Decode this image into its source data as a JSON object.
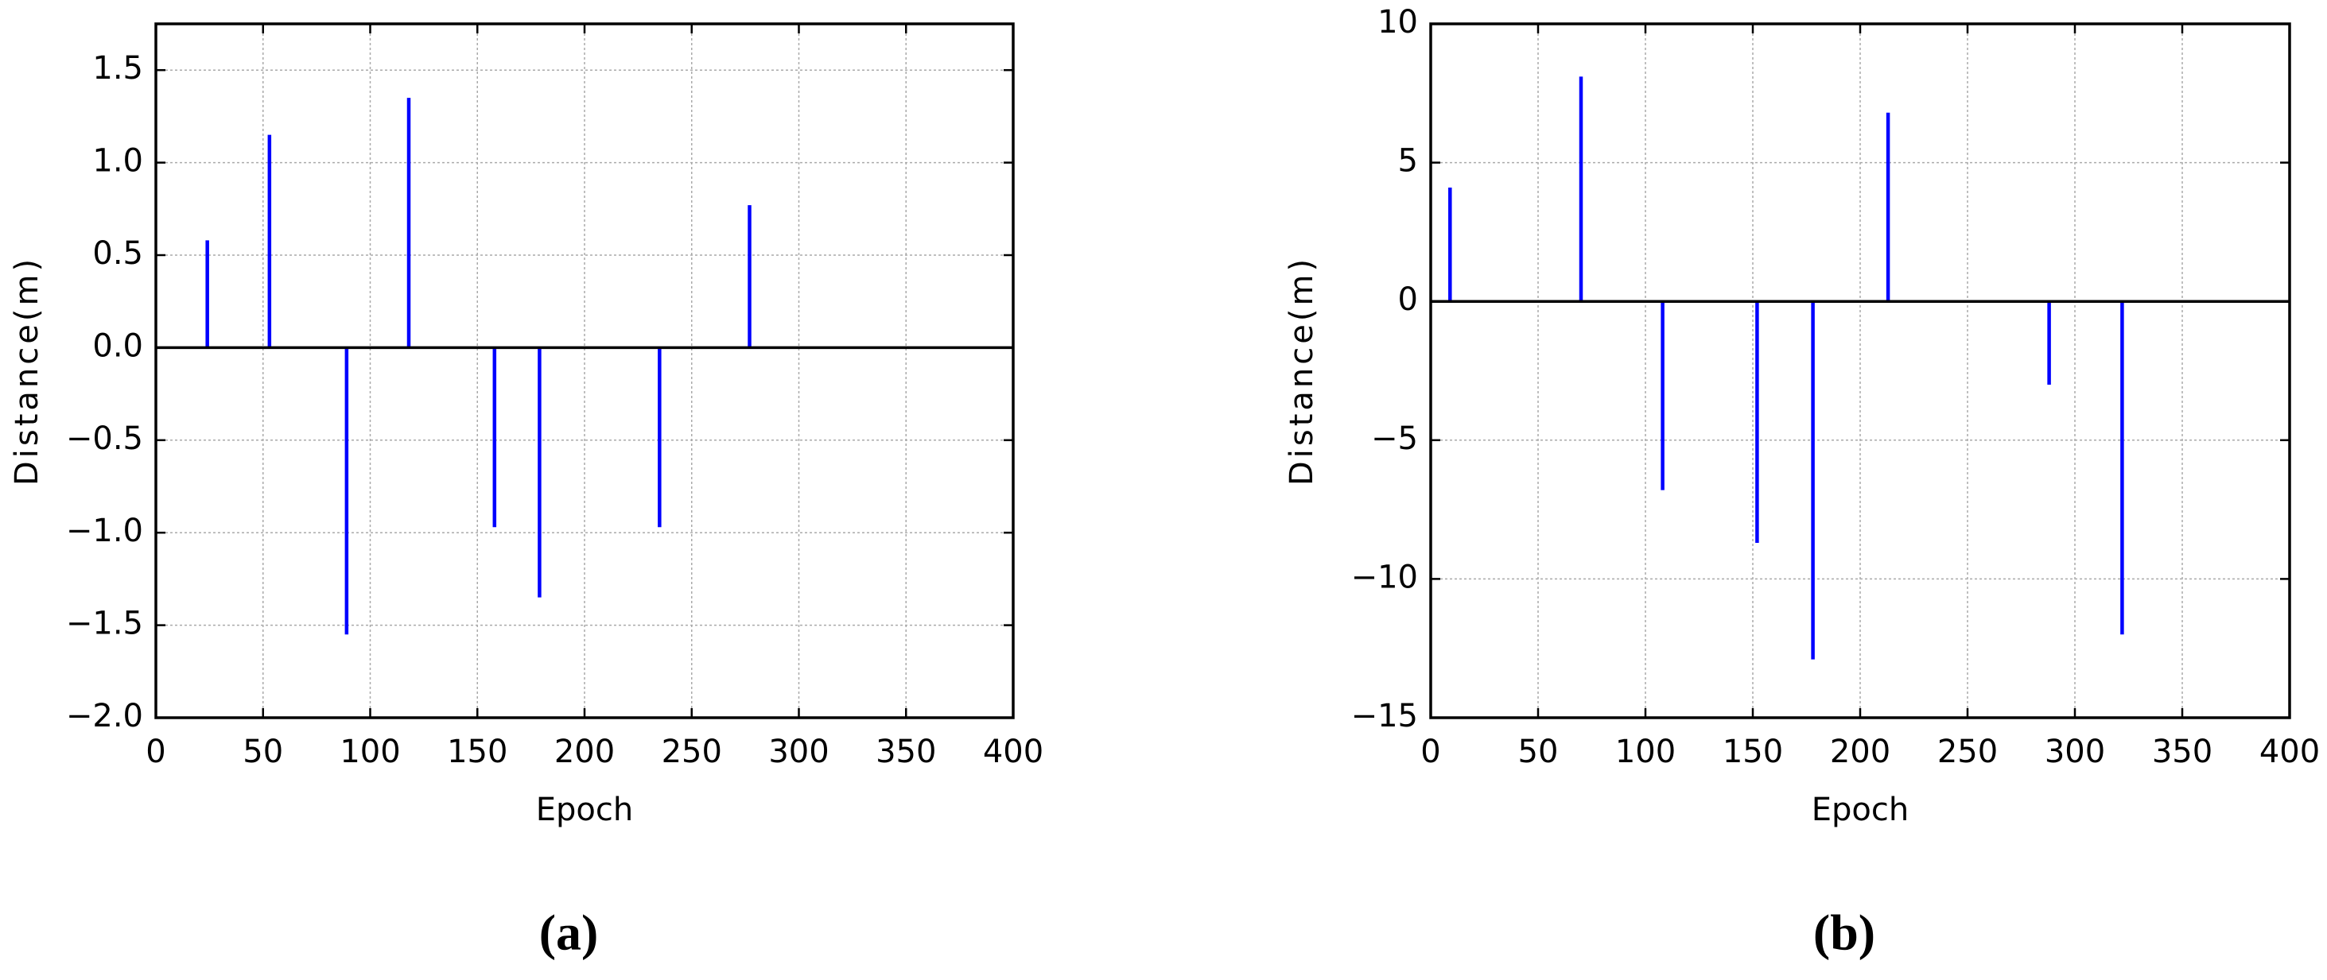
{
  "chart_data": [
    {
      "type": "stem",
      "caption": "(a)",
      "xlabel": "Epoch",
      "ylabel": "Distance(m)",
      "color": "#0000ff",
      "grid": true,
      "x": [
        24,
        53,
        89,
        118,
        158,
        179,
        235,
        277
      ],
      "values": [
        0.58,
        1.15,
        -1.55,
        1.35,
        -0.97,
        -1.35,
        -0.97,
        0.77
      ],
      "xlim": [
        0,
        400
      ],
      "xticks": [
        0,
        50,
        100,
        150,
        200,
        250,
        300,
        350,
        400
      ],
      "ylim": [
        -2.0,
        1.75
      ],
      "yticks": [
        {
          "value": -2.0,
          "label": "−2.0"
        },
        {
          "value": -1.5,
          "label": "−1.5"
        },
        {
          "value": -1.0,
          "label": "−1.0"
        },
        {
          "value": -0.5,
          "label": "−0.5"
        },
        {
          "value": 0,
          "label": "0.0"
        },
        0.5,
        {
          "value": 1.0,
          "label": "1.0"
        },
        1.5
      ]
    },
    {
      "type": "stem",
      "caption": "(b)",
      "xlabel": "Epoch",
      "ylabel": "Distance(m)",
      "color": "#0000ff",
      "grid": true,
      "x": [
        9,
        70,
        108,
        152,
        178,
        213,
        288,
        322
      ],
      "values": [
        4.1,
        8.1,
        -6.8,
        -8.7,
        -12.9,
        6.8,
        -3.0,
        -12.0
      ],
      "xlim": [
        0,
        400
      ],
      "xticks": [
        0,
        50,
        100,
        150,
        200,
        250,
        300,
        350,
        400
      ],
      "ylim": [
        -15,
        10
      ],
      "yticks": [
        {
          "value": -15,
          "label": "−15"
        },
        {
          "value": -10,
          "label": "−10"
        },
        {
          "value": -5,
          "label": "−5"
        },
        0,
        5,
        10
      ]
    }
  ]
}
